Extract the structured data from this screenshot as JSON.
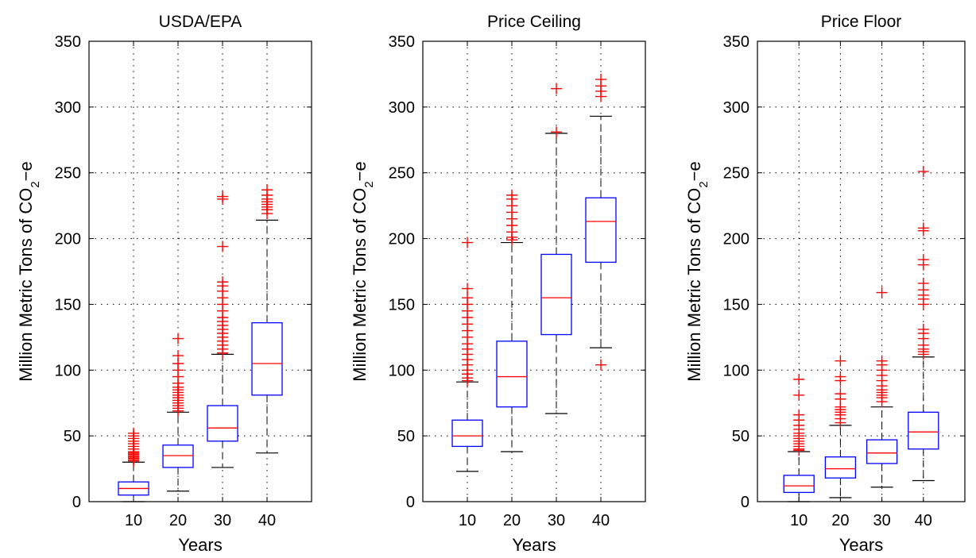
{
  "chart_data": [
    {
      "type": "boxplot",
      "title": "USDA/EPA",
      "xlabel": "Years",
      "ylabel_prefix": "Million Metric Tons of CO",
      "ylabel_sub": "2",
      "ylabel_suffix": "−e",
      "categories": [
        "10",
        "20",
        "30",
        "40"
      ],
      "ylim": [
        0,
        350
      ],
      "yticks": [
        "0",
        "50",
        "100",
        "150",
        "200",
        "250",
        "300",
        "350"
      ],
      "grid": true,
      "boxes": [
        {
          "category": "10",
          "whisker_low": 0,
          "q1": 5,
          "median": 10,
          "q3": 15,
          "whisker_high": 30,
          "outliers": [
            31,
            32,
            33,
            34,
            35,
            36,
            37,
            38,
            40,
            42,
            44,
            46,
            48,
            50,
            52
          ]
        },
        {
          "category": "20",
          "whisker_low": 8,
          "q1": 26,
          "median": 35,
          "q3": 43,
          "whisker_high": 68,
          "outliers": [
            69,
            71,
            73,
            75,
            77,
            79,
            81,
            83,
            85,
            87,
            90,
            95,
            100,
            105,
            111,
            124
          ]
        },
        {
          "category": "30",
          "whisker_low": 26,
          "q1": 46,
          "median": 56,
          "q3": 73,
          "whisker_high": 112,
          "outliers": [
            113,
            116,
            119,
            122,
            125,
            128,
            131,
            134,
            137,
            140,
            145,
            150,
            155,
            160,
            164,
            167,
            194,
            230,
            232
          ]
        },
        {
          "category": "40",
          "whisker_low": 37,
          "q1": 81,
          "median": 105,
          "q3": 136,
          "whisker_high": 214,
          "outliers": [
            219,
            222,
            224,
            226,
            228,
            230,
            233,
            237
          ]
        }
      ]
    },
    {
      "type": "boxplot",
      "title": "Price Ceiling",
      "xlabel": "Years",
      "ylabel_prefix": "Million Metric Tons of CO",
      "ylabel_sub": "2",
      "ylabel_suffix": "−e",
      "categories": [
        "10",
        "20",
        "30",
        "40"
      ],
      "ylim": [
        0,
        350
      ],
      "yticks": [
        "0",
        "50",
        "100",
        "150",
        "200",
        "250",
        "300",
        "350"
      ],
      "grid": true,
      "boxes": [
        {
          "category": "10",
          "whisker_low": 23,
          "q1": 42,
          "median": 50,
          "q3": 62,
          "whisker_high": 91,
          "outliers": [
            92,
            94,
            97,
            100,
            104,
            108,
            112,
            116,
            120,
            125,
            130,
            135,
            140,
            145,
            150,
            155,
            162,
            197
          ]
        },
        {
          "category": "20",
          "whisker_low": 38,
          "q1": 72,
          "median": 95,
          "q3": 122,
          "whisker_high": 197,
          "outliers": [
            199,
            201,
            205,
            210,
            215,
            220,
            225,
            230,
            233
          ]
        },
        {
          "category": "30",
          "whisker_low": 67,
          "q1": 127,
          "median": 155,
          "q3": 188,
          "whisker_high": 280,
          "outliers": [
            281,
            314
          ]
        },
        {
          "category": "40",
          "whisker_low": 117,
          "q1": 182,
          "median": 213,
          "q3": 231,
          "whisker_high": 293,
          "outliers": [
            104,
            308,
            312,
            316,
            321
          ]
        }
      ]
    },
    {
      "type": "boxplot",
      "title": "Price Floor",
      "xlabel": "Years",
      "ylabel_prefix": "Million Metric Tons of CO",
      "ylabel_sub": "2",
      "ylabel_suffix": "−e",
      "categories": [
        "10",
        "20",
        "30",
        "40"
      ],
      "ylim": [
        0,
        350
      ],
      "yticks": [
        "0",
        "50",
        "100",
        "150",
        "200",
        "250",
        "300",
        "350"
      ],
      "grid": true,
      "boxes": [
        {
          "category": "10",
          "whisker_low": 0,
          "q1": 7,
          "median": 12,
          "q3": 20,
          "whisker_high": 38,
          "outliers": [
            39,
            40,
            42,
            44,
            46,
            48,
            50,
            52,
            55,
            58,
            62,
            66,
            81,
            93
          ]
        },
        {
          "category": "20",
          "whisker_low": 3,
          "q1": 18,
          "median": 25,
          "q3": 34,
          "whisker_high": 58,
          "outliers": [
            60,
            63,
            66,
            68,
            70,
            72,
            78,
            82,
            92,
            95,
            107
          ]
        },
        {
          "category": "30",
          "whisker_low": 11,
          "q1": 29,
          "median": 37,
          "q3": 47,
          "whisker_high": 72,
          "outliers": [
            76,
            79,
            81,
            83,
            85,
            88,
            92,
            96,
            100,
            104,
            107,
            159
          ]
        },
        {
          "category": "40",
          "whisker_low": 16,
          "q1": 40,
          "median": 53,
          "q3": 68,
          "whisker_high": 110,
          "outliers": [
            112,
            114,
            116,
            119,
            124,
            128,
            131,
            150,
            154,
            157,
            161,
            166,
            180,
            184,
            206,
            208,
            251
          ]
        }
      ]
    }
  ],
  "colors": {
    "box": "#0000ff",
    "median": "#ff0000",
    "outlier": "#ff0000",
    "whisker": "#000000",
    "grid": "#000000"
  }
}
